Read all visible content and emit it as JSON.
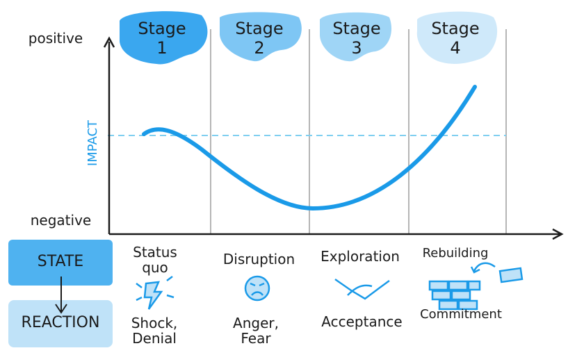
{
  "axis": {
    "top": "positive",
    "bottom": "negative",
    "label": "IMPACT"
  },
  "stages": [
    {
      "word": "Stage",
      "number": "1"
    },
    {
      "word": "Stage",
      "number": "2"
    },
    {
      "word": "Stage",
      "number": "3"
    },
    {
      "word": "Stage",
      "number": "4"
    }
  ],
  "legend": {
    "state": "STATE",
    "reaction": "REACTION"
  },
  "states": [
    "Status quo",
    "Disruption",
    "Exploration",
    "Rebuilding"
  ],
  "reactions": [
    "Shock, Denial",
    "Anger, Fear",
    "Acceptance",
    "Commitment"
  ]
}
